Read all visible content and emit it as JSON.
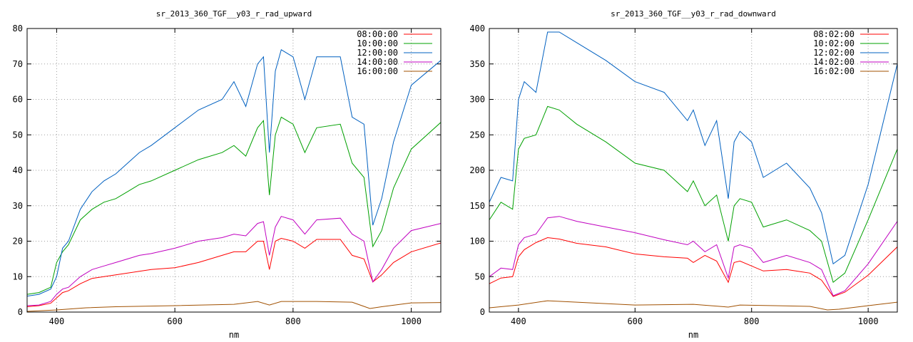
{
  "chart_data": [
    {
      "type": "line",
      "title": "sr_2013_360_TGF__y03_r_rad_upward",
      "xlabel": "nm",
      "ylabel": "",
      "xlim": [
        350,
        1050
      ],
      "ylim": [
        0,
        80
      ],
      "xticks": [
        400,
        600,
        800,
        1000
      ],
      "yticks": [
        0,
        10,
        20,
        30,
        40,
        50,
        60,
        70,
        80
      ],
      "grid": true,
      "legend_position": "top-right",
      "series": [
        {
          "name": "08:00:00",
          "color": "#ff0000",
          "x": [
            350,
            370,
            390,
            400,
            410,
            420,
            440,
            460,
            480,
            500,
            520,
            540,
            560,
            600,
            640,
            680,
            700,
            720,
            740,
            750,
            760,
            770,
            780,
            800,
            820,
            840,
            880,
            900,
            920,
            935,
            950,
            970,
            1000,
            1050
          ],
          "y": [
            1.5,
            1.8,
            2.5,
            4.0,
            5.5,
            6.0,
            8.0,
            9.5,
            10.0,
            10.5,
            11.0,
            11.5,
            12.0,
            12.5,
            14.0,
            16.0,
            17.0,
            17.0,
            20.0,
            20.0,
            12.0,
            20.0,
            20.8,
            20.0,
            18.0,
            20.5,
            20.5,
            16.0,
            15.0,
            8.5,
            10.5,
            14.0,
            17.0,
            19.5
          ]
        },
        {
          "name": "10:00:00",
          "color": "#00a000",
          "x": [
            350,
            370,
            390,
            400,
            410,
            420,
            440,
            460,
            480,
            500,
            520,
            540,
            560,
            600,
            640,
            680,
            700,
            720,
            740,
            750,
            760,
            770,
            780,
            800,
            820,
            840,
            880,
            900,
            920,
            935,
            950,
            970,
            1000,
            1050
          ],
          "y": [
            5.0,
            5.5,
            7.0,
            14.0,
            17.0,
            19.0,
            26.0,
            29.0,
            31.0,
            32.0,
            34.0,
            36.0,
            37.0,
            40.0,
            43.0,
            45.0,
            47.0,
            44.0,
            52.0,
            54.0,
            33.0,
            50.0,
            55.0,
            53.0,
            45.0,
            52.0,
            53.0,
            42.0,
            38.0,
            18.5,
            23.0,
            35.0,
            46.0,
            53.5
          ]
        },
        {
          "name": "12:00:00",
          "color": "#0060c0",
          "x": [
            350,
            370,
            390,
            400,
            410,
            420,
            440,
            460,
            480,
            500,
            520,
            540,
            560,
            600,
            640,
            680,
            700,
            720,
            740,
            750,
            760,
            770,
            780,
            800,
            820,
            840,
            880,
            900,
            920,
            935,
            950,
            970,
            1000,
            1050
          ],
          "y": [
            4.5,
            5.0,
            6.5,
            10.0,
            18.0,
            20.0,
            29.0,
            34.0,
            37.0,
            39.0,
            42.0,
            45.0,
            47.0,
            52.0,
            57.0,
            60.0,
            65.0,
            58.0,
            70.0,
            72.0,
            45.0,
            68.0,
            74.0,
            72.0,
            60.0,
            72.0,
            72.0,
            55.0,
            53.0,
            24.5,
            32.0,
            48.0,
            64.0,
            71.0
          ]
        },
        {
          "name": "14:00:00",
          "color": "#c000c0",
          "x": [
            350,
            370,
            390,
            400,
            410,
            420,
            440,
            460,
            480,
            500,
            520,
            540,
            560,
            600,
            640,
            680,
            700,
            720,
            740,
            750,
            760,
            770,
            780,
            800,
            820,
            840,
            880,
            900,
            920,
            935,
            950,
            970,
            1000,
            1050
          ],
          "y": [
            1.8,
            2.0,
            3.0,
            5.0,
            6.5,
            7.0,
            10.0,
            12.0,
            13.0,
            14.0,
            15.0,
            16.0,
            16.5,
            18.0,
            20.0,
            21.0,
            22.0,
            21.5,
            25.0,
            25.5,
            16.0,
            24.0,
            27.0,
            26.0,
            22.0,
            26.0,
            26.5,
            22.0,
            20.0,
            8.5,
            12.0,
            18.0,
            23.0,
            25.0
          ]
        },
        {
          "name": "16:00:00",
          "color": "#a05000",
          "x": [
            350,
            400,
            450,
            500,
            600,
            700,
            740,
            760,
            780,
            840,
            900,
            930,
            950,
            1000,
            1050
          ],
          "y": [
            0.2,
            0.6,
            1.2,
            1.5,
            1.8,
            2.2,
            3.0,
            2.0,
            3.0,
            3.0,
            2.8,
            1.0,
            1.5,
            2.6,
            2.7
          ]
        }
      ]
    },
    {
      "type": "line",
      "title": "sr_2013_360_TGF__y03_r_rad_downward",
      "xlabel": "nm",
      "ylabel": "",
      "xlim": [
        350,
        1050
      ],
      "ylim": [
        0,
        400
      ],
      "xticks": [
        400,
        600,
        800,
        1000
      ],
      "yticks": [
        0,
        50,
        100,
        150,
        200,
        250,
        300,
        350,
        400
      ],
      "grid": true,
      "legend_position": "top-right",
      "series": [
        {
          "name": "08:02:00",
          "color": "#ff0000",
          "x": [
            350,
            370,
            390,
            400,
            410,
            430,
            450,
            470,
            500,
            550,
            600,
            650,
            690,
            700,
            720,
            740,
            760,
            770,
            780,
            800,
            820,
            860,
            900,
            920,
            940,
            960,
            1000,
            1050
          ],
          "y": [
            40,
            48,
            50,
            78,
            88,
            98,
            105,
            103,
            97,
            92,
            82,
            78,
            76,
            70,
            80,
            72,
            42,
            70,
            72,
            65,
            58,
            60,
            55,
            45,
            22,
            28,
            52,
            92
          ]
        },
        {
          "name": "10:02:00",
          "color": "#00a000",
          "x": [
            350,
            370,
            390,
            400,
            410,
            430,
            450,
            470,
            500,
            550,
            600,
            650,
            690,
            700,
            720,
            740,
            760,
            770,
            780,
            800,
            820,
            860,
            900,
            920,
            940,
            960,
            1000,
            1050
          ],
          "y": [
            130,
            155,
            145,
            230,
            245,
            250,
            290,
            285,
            265,
            240,
            210,
            200,
            170,
            185,
            150,
            165,
            100,
            150,
            160,
            155,
            120,
            130,
            115,
            100,
            42,
            55,
            130,
            230
          ]
        },
        {
          "name": "12:02:00",
          "color": "#0060c0",
          "x": [
            350,
            370,
            390,
            400,
            410,
            430,
            450,
            470,
            500,
            550,
            600,
            650,
            690,
            700,
            720,
            740,
            760,
            770,
            780,
            800,
            820,
            860,
            900,
            920,
            940,
            960,
            1000,
            1050
          ],
          "y": [
            155,
            190,
            185,
            300,
            325,
            310,
            395,
            395,
            380,
            355,
            325,
            310,
            270,
            285,
            235,
            270,
            160,
            240,
            255,
            240,
            190,
            210,
            175,
            140,
            68,
            80,
            180,
            350
          ]
        },
        {
          "name": "14:02:00",
          "color": "#c000c0",
          "x": [
            350,
            370,
            390,
            400,
            410,
            430,
            450,
            470,
            500,
            550,
            600,
            650,
            690,
            700,
            720,
            740,
            760,
            770,
            780,
            800,
            820,
            860,
            900,
            920,
            940,
            960,
            1000,
            1050
          ],
          "y": [
            50,
            62,
            60,
            95,
            105,
            110,
            133,
            135,
            128,
            120,
            112,
            102,
            95,
            100,
            85,
            95,
            48,
            92,
            95,
            90,
            70,
            80,
            70,
            60,
            23,
            30,
            68,
            128
          ]
        },
        {
          "name": "16:02:00",
          "color": "#a05000",
          "x": [
            350,
            400,
            450,
            500,
            600,
            700,
            760,
            780,
            840,
            900,
            930,
            950,
            1000,
            1050
          ],
          "y": [
            6,
            10,
            16,
            14,
            10,
            11,
            7,
            10,
            9,
            8,
            3,
            4,
            9,
            14
          ]
        }
      ]
    }
  ]
}
